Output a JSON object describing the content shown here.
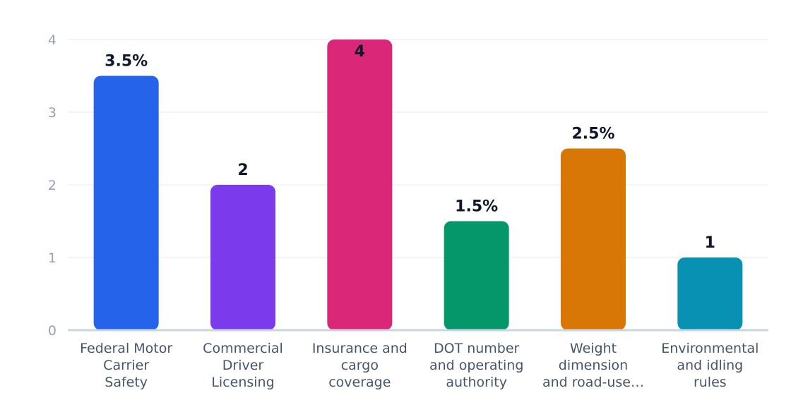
{
  "chart_data": {
    "type": "bar",
    "categories": [
      [
        "Federal Motor",
        "Carrier",
        "Safety"
      ],
      [
        "Commercial",
        "Driver",
        "Licensing"
      ],
      [
        "Insurance and",
        "cargo",
        "coverage"
      ],
      [
        "DOT number",
        "and operating",
        "authority"
      ],
      [
        "Weight",
        "dimension",
        "and road-use…"
      ],
      [
        "Environmental",
        "and idling",
        "rules"
      ]
    ],
    "values": [
      3.5,
      2,
      4,
      1.5,
      2.5,
      1
    ],
    "data_labels": [
      "3.5%",
      "2",
      "4",
      "1.5%",
      "2.5%",
      "1"
    ],
    "colors": [
      "#2563eb",
      "#7c3aed",
      "#db2777",
      "#059669",
      "#d97706",
      "#0891b2"
    ],
    "yticks": [
      "0",
      "1",
      "2",
      "3",
      "4"
    ],
    "ylim": [
      0,
      4
    ],
    "grid": true,
    "legend": "none"
  }
}
